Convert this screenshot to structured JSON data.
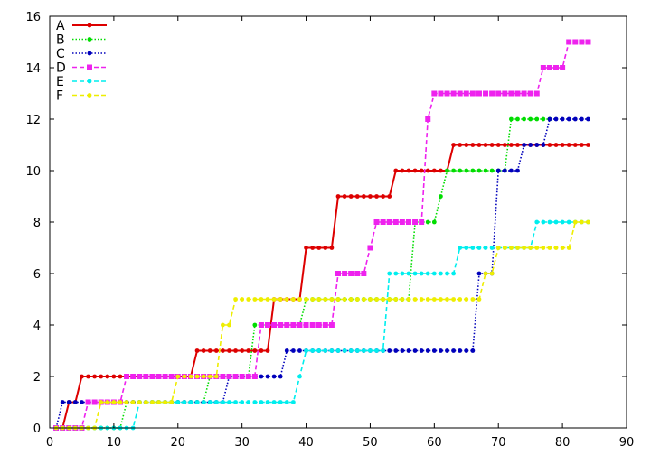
{
  "chart_data": {
    "type": "line",
    "title": "",
    "xlabel": "",
    "ylabel": "",
    "xlim": [
      0,
      90
    ],
    "ylim": [
      0,
      16
    ],
    "xticks": [
      0,
      10,
      20,
      30,
      40,
      50,
      60,
      70,
      80,
      90
    ],
    "yticks": [
      0,
      2,
      4,
      6,
      8,
      10,
      12,
      14,
      16
    ],
    "grid": false,
    "legend_position": "top-left",
    "series": [
      {
        "name": "A",
        "color": "#dd0000",
        "line_style": "solid",
        "marker": "dot",
        "x": [
          1,
          2,
          3,
          4,
          5,
          6,
          7,
          8,
          9,
          10,
          11,
          12,
          13,
          14,
          15,
          16,
          17,
          18,
          19,
          20,
          21,
          22,
          23,
          24,
          25,
          26,
          27,
          28,
          29,
          30,
          31,
          32,
          33,
          34,
          35,
          36,
          37,
          38,
          39,
          40,
          41,
          42,
          43,
          44,
          45,
          46,
          47,
          48,
          49,
          50,
          51,
          52,
          53,
          54,
          55,
          56,
          57,
          58,
          59,
          60,
          61,
          62,
          63,
          64,
          65,
          66,
          67,
          68,
          69,
          70,
          71,
          72,
          73,
          74,
          75,
          76,
          77,
          78,
          79,
          80,
          81,
          82,
          83,
          84
        ],
        "y": [
          0,
          0,
          1,
          1,
          2,
          2,
          2,
          2,
          2,
          2,
          2,
          2,
          2,
          2,
          2,
          2,
          2,
          2,
          2,
          2,
          2,
          2,
          3,
          3,
          3,
          3,
          3,
          3,
          3,
          3,
          3,
          3,
          3,
          3,
          5,
          5,
          5,
          5,
          5,
          7,
          7,
          7,
          7,
          7,
          9,
          9,
          9,
          9,
          9,
          9,
          9,
          9,
          9,
          10,
          10,
          10,
          10,
          10,
          10,
          10,
          10,
          10,
          11,
          11,
          11,
          11,
          11,
          11,
          11,
          11,
          11,
          11,
          11,
          11,
          11,
          11,
          11,
          11,
          11,
          11,
          11,
          11,
          11,
          11
        ]
      },
      {
        "name": "B",
        "color": "#00dd00",
        "line_style": "dotted",
        "marker": "dot",
        "x": [
          1,
          2,
          3,
          4,
          5,
          6,
          7,
          8,
          9,
          10,
          11,
          12,
          13,
          14,
          15,
          16,
          17,
          18,
          19,
          20,
          21,
          22,
          23,
          24,
          25,
          26,
          27,
          28,
          29,
          30,
          31,
          32,
          33,
          34,
          35,
          36,
          37,
          38,
          39,
          40,
          41,
          42,
          43,
          44,
          45,
          46,
          47,
          48,
          49,
          50,
          51,
          52,
          53,
          54,
          55,
          56,
          57,
          58,
          59,
          60,
          61,
          62,
          63,
          64,
          65,
          66,
          67,
          68,
          69,
          70,
          71,
          72,
          73,
          74,
          75,
          76,
          77,
          78
        ],
        "y": [
          0,
          0,
          0,
          0,
          0,
          0,
          0,
          0,
          0,
          0,
          0,
          1,
          1,
          1,
          1,
          1,
          1,
          1,
          1,
          1,
          1,
          1,
          1,
          1,
          2,
          2,
          2,
          2,
          2,
          2,
          2,
          4,
          4,
          4,
          4,
          4,
          4,
          4,
          4,
          5,
          5,
          5,
          5,
          5,
          5,
          5,
          5,
          5,
          5,
          5,
          5,
          5,
          5,
          5,
          5,
          5,
          8,
          8,
          8,
          8,
          9,
          10,
          10,
          10,
          10,
          10,
          10,
          10,
          10,
          10,
          10,
          12,
          12,
          12,
          12,
          12,
          12,
          12
        ]
      },
      {
        "name": "C",
        "color": "#0000bb",
        "line_style": "dotted",
        "marker": "dot",
        "x": [
          1,
          2,
          3,
          4,
          5,
          6,
          7,
          8,
          9,
          10,
          11,
          12,
          13,
          14,
          15,
          16,
          17,
          18,
          19,
          20,
          21,
          22,
          23,
          24,
          25,
          26,
          27,
          28,
          29,
          30,
          31,
          32,
          33,
          34,
          35,
          36,
          37,
          38,
          39,
          40,
          41,
          42,
          43,
          44,
          45,
          46,
          47,
          48,
          49,
          50,
          51,
          52,
          53,
          54,
          55,
          56,
          57,
          58,
          59,
          60,
          61,
          62,
          63,
          64,
          65,
          66,
          67,
          68,
          69,
          70,
          71,
          72,
          73,
          74,
          75,
          76,
          77,
          78,
          79,
          80,
          81,
          82,
          83,
          84
        ],
        "y": [
          0,
          1,
          1,
          1,
          1,
          1,
          1,
          1,
          1,
          1,
          1,
          1,
          1,
          1,
          1,
          1,
          1,
          1,
          1,
          1,
          1,
          1,
          1,
          1,
          1,
          1,
          1,
          2,
          2,
          2,
          2,
          2,
          2,
          2,
          2,
          2,
          3,
          3,
          3,
          3,
          3,
          3,
          3,
          3,
          3,
          3,
          3,
          3,
          3,
          3,
          3,
          3,
          3,
          3,
          3,
          3,
          3,
          3,
          3,
          3,
          3,
          3,
          3,
          3,
          3,
          3,
          6,
          6,
          6,
          10,
          10,
          10,
          10,
          11,
          11,
          11,
          11,
          12,
          12,
          12,
          12,
          12,
          12,
          12
        ]
      },
      {
        "name": "D",
        "color": "#ee22ee",
        "line_style": "dashed",
        "marker": "square",
        "x": [
          1,
          2,
          3,
          4,
          5,
          6,
          7,
          8,
          9,
          10,
          11,
          12,
          13,
          14,
          15,
          16,
          17,
          18,
          19,
          20,
          21,
          22,
          23,
          24,
          25,
          26,
          27,
          28,
          29,
          30,
          31,
          32,
          33,
          34,
          35,
          36,
          37,
          38,
          39,
          40,
          41,
          42,
          43,
          44,
          45,
          46,
          47,
          48,
          49,
          50,
          51,
          52,
          53,
          54,
          55,
          56,
          57,
          58,
          59,
          60,
          61,
          62,
          63,
          64,
          65,
          66,
          67,
          68,
          69,
          70,
          71,
          72,
          73,
          74,
          75,
          76,
          77,
          78,
          79,
          80,
          81,
          82,
          83,
          84
        ],
        "y": [
          0,
          0,
          0,
          0,
          0,
          1,
          1,
          1,
          1,
          1,
          1,
          2,
          2,
          2,
          2,
          2,
          2,
          2,
          2,
          2,
          2,
          2,
          2,
          2,
          2,
          2,
          2,
          2,
          2,
          2,
          2,
          2,
          4,
          4,
          4,
          4,
          4,
          4,
          4,
          4,
          4,
          4,
          4,
          4,
          6,
          6,
          6,
          6,
          6,
          7,
          8,
          8,
          8,
          8,
          8,
          8,
          8,
          8,
          12,
          13,
          13,
          13,
          13,
          13,
          13,
          13,
          13,
          13,
          13,
          13,
          13,
          13,
          13,
          13,
          13,
          13,
          14,
          14,
          14,
          14,
          15,
          15,
          15,
          15
        ]
      },
      {
        "name": "E",
        "color": "#00eeee",
        "line_style": "dashed",
        "marker": "dot",
        "x": [
          1,
          2,
          3,
          4,
          5,
          6,
          7,
          8,
          9,
          10,
          11,
          12,
          13,
          14,
          15,
          16,
          17,
          18,
          19,
          20,
          21,
          22,
          23,
          24,
          25,
          26,
          27,
          28,
          29,
          30,
          31,
          32,
          33,
          34,
          35,
          36,
          37,
          38,
          39,
          40,
          41,
          42,
          43,
          44,
          45,
          46,
          47,
          48,
          49,
          50,
          51,
          52,
          53,
          54,
          55,
          56,
          57,
          58,
          59,
          60,
          61,
          62,
          63,
          64,
          65,
          66,
          67,
          68,
          69,
          70,
          71,
          72,
          73,
          74,
          75,
          76,
          77,
          78,
          79,
          80,
          81,
          82,
          83,
          84
        ],
        "y": [
          0,
          0,
          0,
          0,
          0,
          0,
          0,
          0,
          0,
          0,
          0,
          0,
          0,
          1,
          1,
          1,
          1,
          1,
          1,
          1,
          1,
          1,
          1,
          1,
          1,
          1,
          1,
          1,
          1,
          1,
          1,
          1,
          1,
          1,
          1,
          1,
          1,
          1,
          2,
          3,
          3,
          3,
          3,
          3,
          3,
          3,
          3,
          3,
          3,
          3,
          3,
          3,
          6,
          6,
          6,
          6,
          6,
          6,
          6,
          6,
          6,
          6,
          6,
          7,
          7,
          7,
          7,
          7,
          7,
          7,
          7,
          7,
          7,
          7,
          7,
          8,
          8,
          8,
          8,
          8,
          8,
          8,
          8,
          8
        ]
      },
      {
        "name": "F",
        "color": "#eeee00",
        "line_style": "dashed",
        "marker": "dot",
        "x": [
          1,
          2,
          3,
          4,
          5,
          6,
          7,
          8,
          9,
          10,
          11,
          12,
          13,
          14,
          15,
          16,
          17,
          18,
          19,
          20,
          21,
          22,
          23,
          24,
          25,
          26,
          27,
          28,
          29,
          30,
          31,
          32,
          33,
          34,
          35,
          36,
          37,
          38,
          39,
          40,
          41,
          42,
          43,
          44,
          45,
          46,
          47,
          48,
          49,
          50,
          51,
          52,
          53,
          54,
          55,
          56,
          57,
          58,
          59,
          60,
          61,
          62,
          63,
          64,
          65,
          66,
          67,
          68,
          69,
          70,
          71,
          72,
          73,
          74,
          75,
          76,
          77,
          78,
          79,
          80,
          81,
          82,
          83,
          84
        ],
        "y": [
          0,
          0,
          0,
          0,
          0,
          0,
          0,
          1,
          1,
          1,
          1,
          1,
          1,
          1,
          1,
          1,
          1,
          1,
          1,
          2,
          2,
          2,
          2,
          2,
          2,
          2,
          4,
          4,
          5,
          5,
          5,
          5,
          5,
          5,
          5,
          5,
          5,
          5,
          5,
          5,
          5,
          5,
          5,
          5,
          5,
          5,
          5,
          5,
          5,
          5,
          5,
          5,
          5,
          5,
          5,
          5,
          5,
          5,
          5,
          5,
          5,
          5,
          5,
          5,
          5,
          5,
          5,
          6,
          6,
          7,
          7,
          7,
          7,
          7,
          7,
          7,
          7,
          7,
          7,
          7,
          7,
          8,
          8,
          8
        ]
      }
    ]
  }
}
